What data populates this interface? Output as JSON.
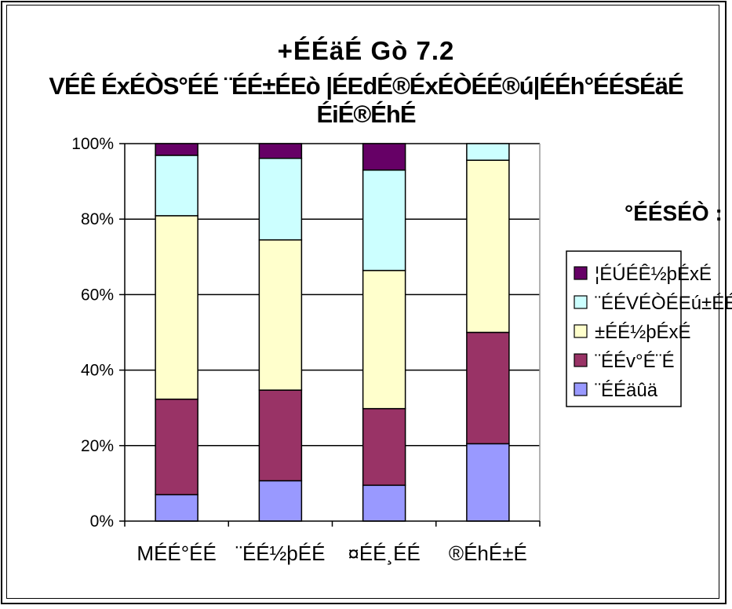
{
  "titles": {
    "line1": "+ÉÉäÉ Gò 7.2",
    "line2": "VÉÊ ÉxÉÒS°ÉÉ ¨ÉÉ±ÉEò |ÉEdÉ®ÉxÉÒÉÉ®ú|ÉÉh°ÉÉSÉäÉ ÉiÉ®ÉhÉ"
  },
  "legend_title": "°ÉÉSÉÒ :",
  "chart_data": {
    "type": "bar",
    "stacked": "percent",
    "categories": [
      "MÉÉ°ÉÉ",
      "¨ÉÉ½þÉÉ",
      "¤ÉÉ¸ÉÉ",
      "®ÉhÉ±É"
    ],
    "series": [
      {
        "name": "¨ÉÉäûä",
        "color": "#9999ff",
        "values": [
          7,
          10.7,
          9.5,
          20.5
        ]
      },
      {
        "name": "¨ÉÉv°É¨É",
        "color": "#993366",
        "values": [
          25.3,
          24,
          20.3,
          29.5
        ]
      },
      {
        "name": "±ÉÉ½þÉxÉ",
        "color": "#ffffcc",
        "values": [
          48.6,
          39.8,
          36.6,
          45.6
        ]
      },
      {
        "name": "¨ÉÉVÉÒÉEú±ÉÉ",
        "color": "#ccffff",
        "values": [
          16,
          21.6,
          26.6,
          4.4
        ]
      },
      {
        "name": "¦ÉÚÉÊ½þÉxÉ",
        "color": "#660066",
        "values": [
          3.1,
          3.9,
          7,
          0
        ]
      }
    ],
    "yticks": [
      "0%",
      "20%",
      "40%",
      "60%",
      "80%",
      "100%"
    ],
    "ylim": [
      0,
      100
    ],
    "grid": true,
    "legend_position": "right"
  }
}
